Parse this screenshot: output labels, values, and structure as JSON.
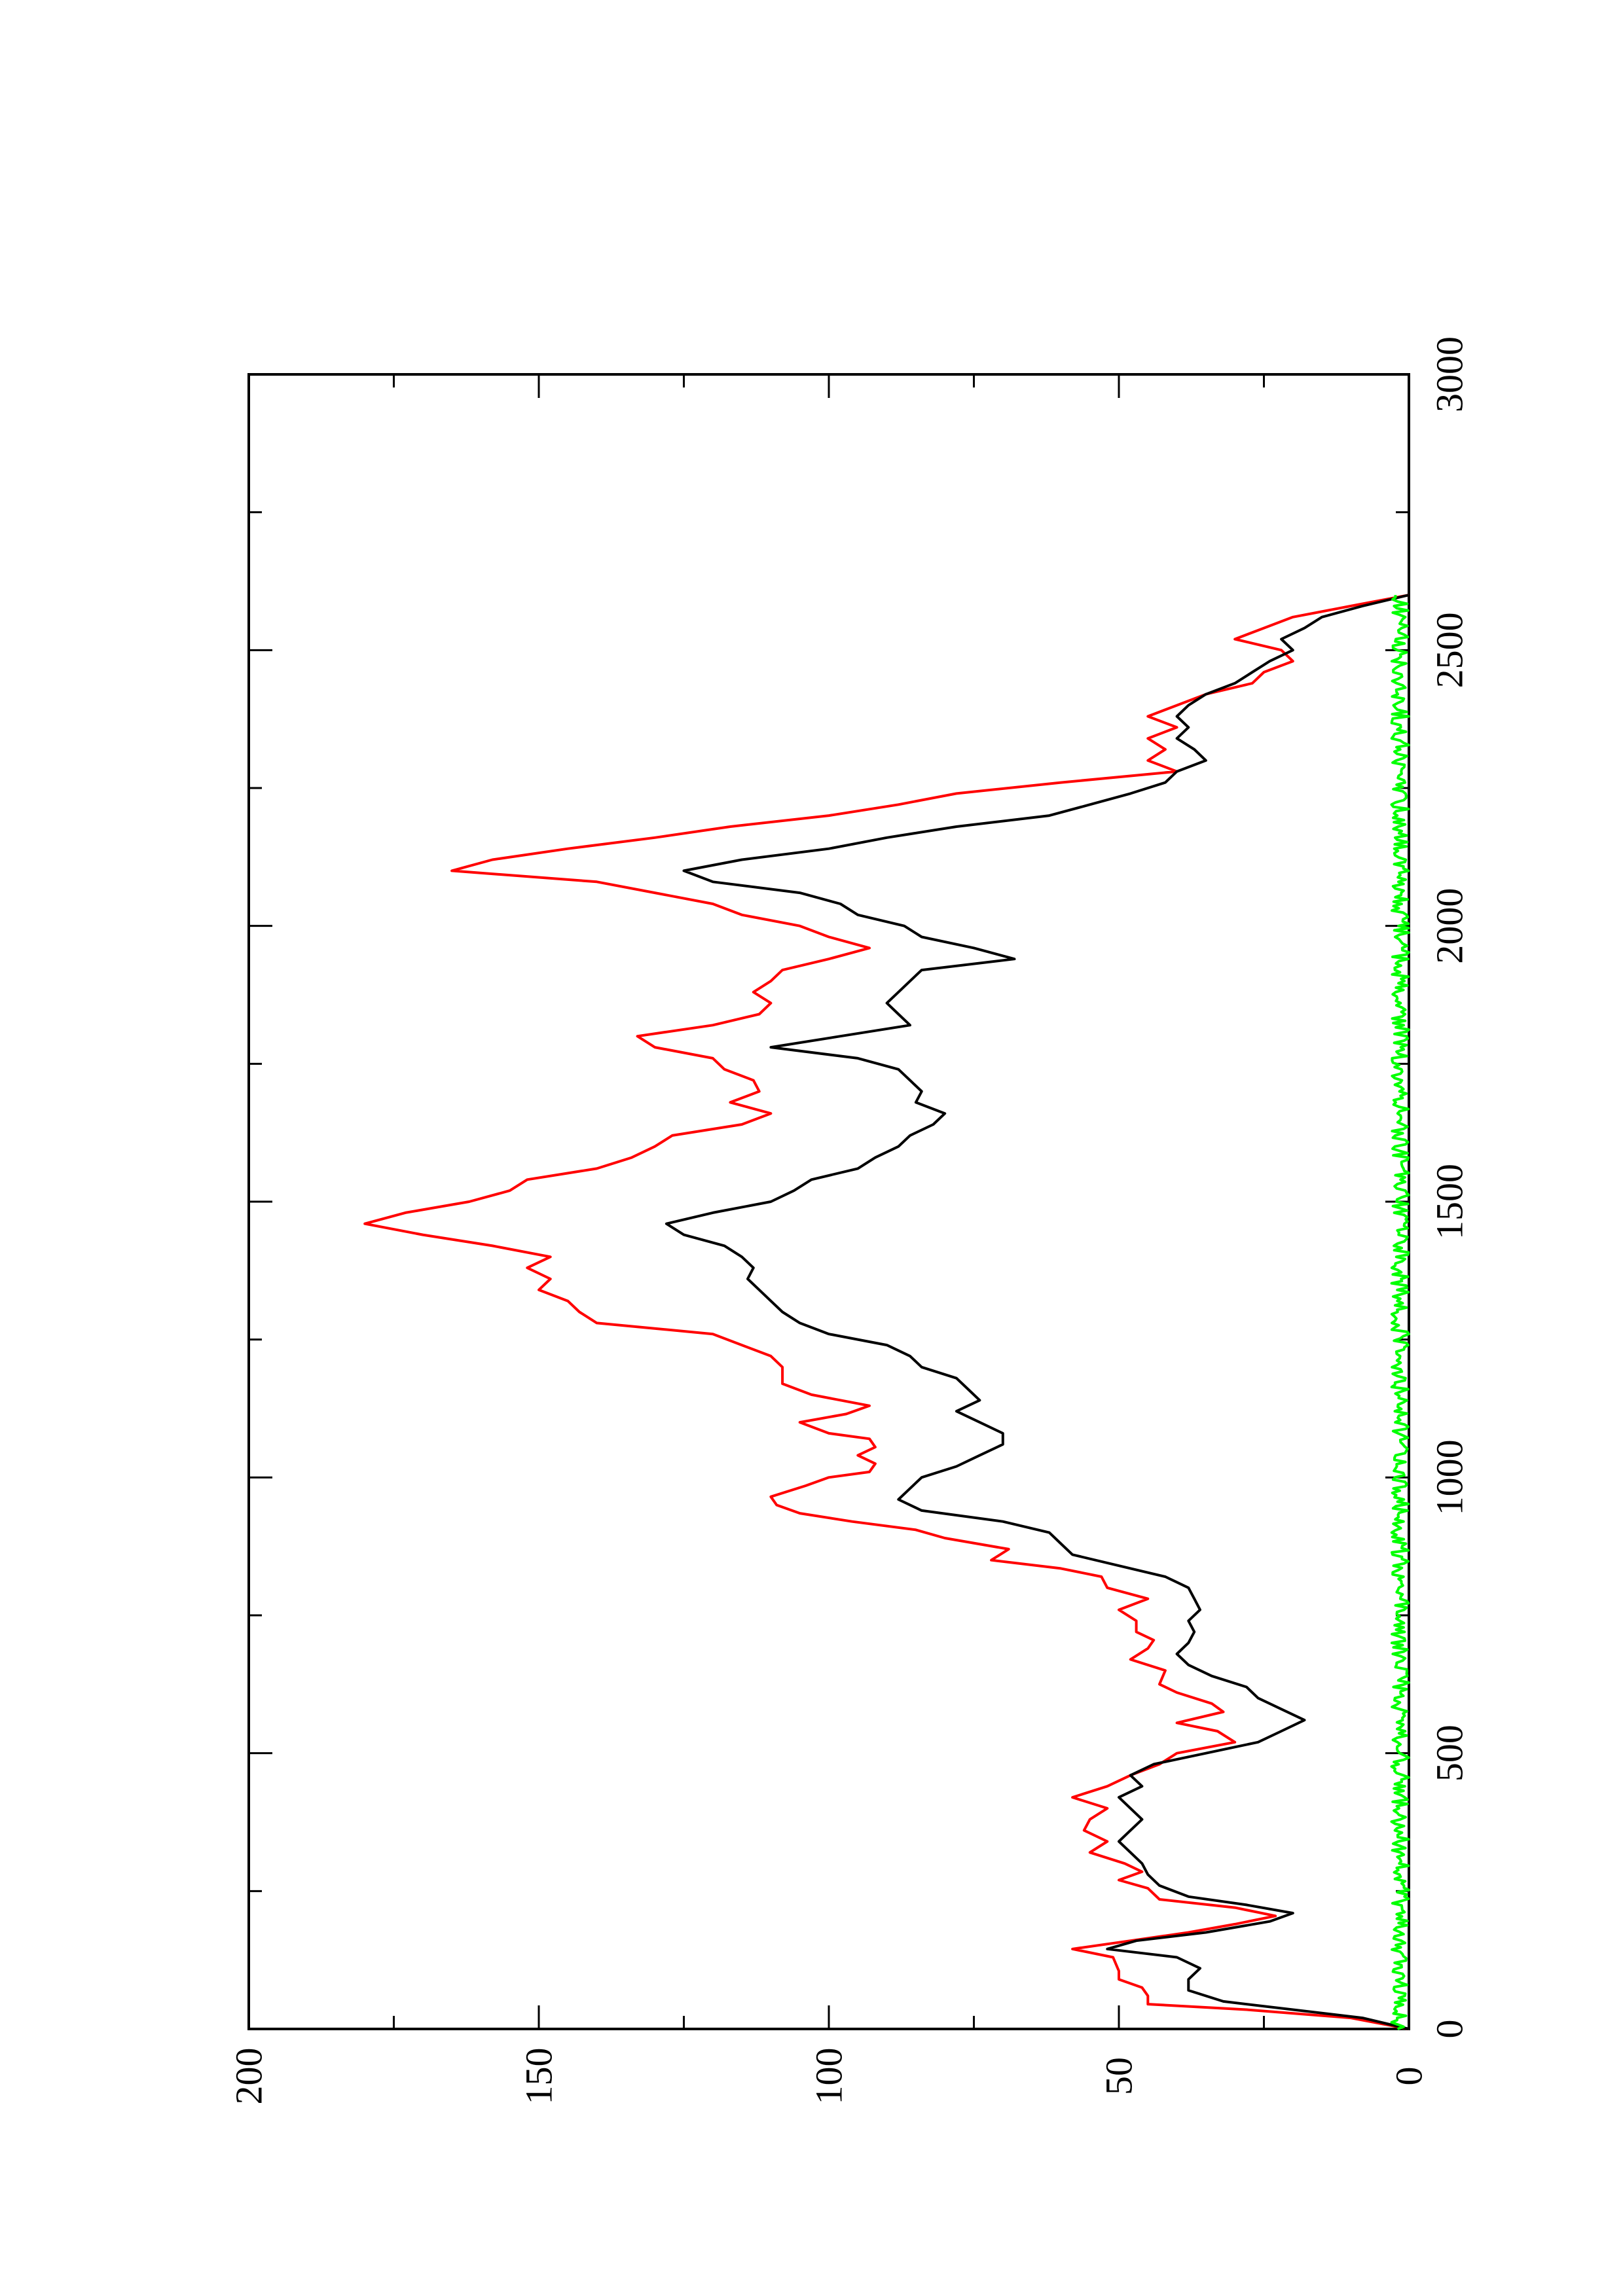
{
  "chart_data": {
    "type": "line",
    "orientation": "rotated-90-ccw",
    "title": "",
    "xlabel": "",
    "ylabel": "",
    "xlim": [
      0,
      3000
    ],
    "ylim": [
      0,
      200
    ],
    "x_ticks_major": [
      0,
      500,
      1000,
      1500,
      2000,
      2500,
      3000
    ],
    "x_tick_labels": [
      "0",
      "500",
      "1000",
      "1500",
      "2000",
      "2500",
      "3000"
    ],
    "y_ticks_major": [
      0,
      50,
      100,
      150,
      200
    ],
    "y_tick_labels": [
      "0",
      "50",
      "100",
      "150",
      "200"
    ],
    "grid": false,
    "legend": "none",
    "series": [
      {
        "color": "#ff0000",
        "points": [
          [
            0,
            0
          ],
          [
            20,
            10
          ],
          [
            35,
            28
          ],
          [
            45,
            45
          ],
          [
            60,
            45
          ],
          [
            75,
            46
          ],
          [
            90,
            50
          ],
          [
            105,
            50
          ],
          [
            130,
            51
          ],
          [
            145,
            58
          ],
          [
            160,
            48
          ],
          [
            175,
            38
          ],
          [
            190,
            30
          ],
          [
            205,
            23
          ],
          [
            220,
            30
          ],
          [
            235,
            43
          ],
          [
            255,
            45
          ],
          [
            270,
            50
          ],
          [
            285,
            46
          ],
          [
            300,
            49
          ],
          [
            320,
            55
          ],
          [
            340,
            52
          ],
          [
            360,
            56
          ],
          [
            380,
            55
          ],
          [
            400,
            52
          ],
          [
            420,
            58
          ],
          [
            440,
            52
          ],
          [
            460,
            48
          ],
          [
            480,
            43
          ],
          [
            500,
            40
          ],
          [
            520,
            30
          ],
          [
            540,
            33
          ],
          [
            555,
            40
          ],
          [
            575,
            32
          ],
          [
            590,
            34
          ],
          [
            610,
            40
          ],
          [
            625,
            43
          ],
          [
            650,
            42
          ],
          [
            670,
            48
          ],
          [
            690,
            45
          ],
          [
            705,
            44
          ],
          [
            720,
            47
          ],
          [
            740,
            47
          ],
          [
            760,
            50
          ],
          [
            780,
            45
          ],
          [
            800,
            52
          ],
          [
            820,
            53
          ],
          [
            835,
            60
          ],
          [
            850,
            72
          ],
          [
            870,
            69
          ],
          [
            890,
            80
          ],
          [
            905,
            85
          ],
          [
            920,
            96
          ],
          [
            935,
            105
          ],
          [
            950,
            109
          ],
          [
            965,
            110
          ],
          [
            985,
            104
          ],
          [
            1000,
            100
          ],
          [
            1010,
            93
          ],
          [
            1025,
            92
          ],
          [
            1040,
            95
          ],
          [
            1055,
            92
          ],
          [
            1070,
            93
          ],
          [
            1080,
            100
          ],
          [
            1100,
            105
          ],
          [
            1115,
            97
          ],
          [
            1130,
            93
          ],
          [
            1150,
            103
          ],
          [
            1170,
            108
          ],
          [
            1200,
            108
          ],
          [
            1220,
            110
          ],
          [
            1240,
            115
          ],
          [
            1260,
            120
          ],
          [
            1280,
            140
          ],
          [
            1300,
            143
          ],
          [
            1320,
            145
          ],
          [
            1340,
            150
          ],
          [
            1360,
            148
          ],
          [
            1380,
            152
          ],
          [
            1400,
            148
          ],
          [
            1420,
            158
          ],
          [
            1440,
            170
          ],
          [
            1460,
            180
          ],
          [
            1480,
            173
          ],
          [
            1500,
            162
          ],
          [
            1520,
            155
          ],
          [
            1540,
            152
          ],
          [
            1560,
            140
          ],
          [
            1580,
            134
          ],
          [
            1600,
            130
          ],
          [
            1620,
            127
          ],
          [
            1640,
            115
          ],
          [
            1660,
            110
          ],
          [
            1680,
            117
          ],
          [
            1700,
            112
          ],
          [
            1720,
            113
          ],
          [
            1740,
            118
          ],
          [
            1760,
            120
          ],
          [
            1780,
            130
          ],
          [
            1800,
            133
          ],
          [
            1820,
            120
          ],
          [
            1840,
            112
          ],
          [
            1860,
            110
          ],
          [
            1880,
            113
          ],
          [
            1900,
            110
          ],
          [
            1920,
            108
          ],
          [
            1940,
            100
          ],
          [
            1960,
            93
          ],
          [
            1980,
            100
          ],
          [
            2000,
            105
          ],
          [
            2020,
            115
          ],
          [
            2040,
            120
          ],
          [
            2060,
            130
          ],
          [
            2080,
            140
          ],
          [
            2100,
            165
          ],
          [
            2120,
            158
          ],
          [
            2140,
            145
          ],
          [
            2160,
            130
          ],
          [
            2180,
            117
          ],
          [
            2200,
            100
          ],
          [
            2220,
            88
          ],
          [
            2240,
            78
          ],
          [
            2260,
            60
          ],
          [
            2280,
            40
          ],
          [
            2300,
            45
          ],
          [
            2320,
            42
          ],
          [
            2340,
            45
          ],
          [
            2360,
            40
          ],
          [
            2380,
            45
          ],
          [
            2400,
            40
          ],
          [
            2420,
            35
          ],
          [
            2440,
            27
          ],
          [
            2460,
            25
          ],
          [
            2480,
            20
          ],
          [
            2500,
            22
          ],
          [
            2520,
            30
          ],
          [
            2540,
            25
          ],
          [
            2560,
            20
          ],
          [
            2580,
            10
          ],
          [
            2600,
            0
          ]
        ]
      },
      {
        "color": "#000000",
        "points": [
          [
            0,
            0
          ],
          [
            20,
            8
          ],
          [
            35,
            20
          ],
          [
            50,
            32
          ],
          [
            70,
            38
          ],
          [
            90,
            38
          ],
          [
            110,
            36
          ],
          [
            130,
            40
          ],
          [
            145,
            52
          ],
          [
            160,
            47
          ],
          [
            175,
            35
          ],
          [
            195,
            24
          ],
          [
            210,
            20
          ],
          [
            225,
            28
          ],
          [
            240,
            38
          ],
          [
            260,
            43
          ],
          [
            280,
            45
          ],
          [
            300,
            46
          ],
          [
            320,
            48
          ],
          [
            340,
            50
          ],
          [
            360,
            48
          ],
          [
            380,
            46
          ],
          [
            400,
            48
          ],
          [
            420,
            50
          ],
          [
            440,
            46
          ],
          [
            460,
            48
          ],
          [
            480,
            44
          ],
          [
            500,
            35
          ],
          [
            520,
            26
          ],
          [
            540,
            22
          ],
          [
            560,
            18
          ],
          [
            580,
            22
          ],
          [
            600,
            26
          ],
          [
            620,
            28
          ],
          [
            640,
            34
          ],
          [
            660,
            38
          ],
          [
            680,
            40
          ],
          [
            700,
            38
          ],
          [
            720,
            37
          ],
          [
            740,
            38
          ],
          [
            760,
            36
          ],
          [
            780,
            37
          ],
          [
            800,
            38
          ],
          [
            820,
            42
          ],
          [
            840,
            50
          ],
          [
            860,
            58
          ],
          [
            880,
            60
          ],
          [
            900,
            62
          ],
          [
            920,
            70
          ],
          [
            940,
            84
          ],
          [
            960,
            88
          ],
          [
            980,
            86
          ],
          [
            1000,
            84
          ],
          [
            1020,
            78
          ],
          [
            1040,
            74
          ],
          [
            1060,
            70
          ],
          [
            1080,
            70
          ],
          [
            1100,
            74
          ],
          [
            1120,
            78
          ],
          [
            1140,
            74
          ],
          [
            1160,
            76
          ],
          [
            1180,
            78
          ],
          [
            1200,
            84
          ],
          [
            1220,
            86
          ],
          [
            1240,
            90
          ],
          [
            1260,
            100
          ],
          [
            1280,
            105
          ],
          [
            1300,
            108
          ],
          [
            1320,
            110
          ],
          [
            1340,
            112
          ],
          [
            1360,
            114
          ],
          [
            1380,
            113
          ],
          [
            1400,
            115
          ],
          [
            1420,
            118
          ],
          [
            1440,
            125
          ],
          [
            1460,
            128
          ],
          [
            1480,
            120
          ],
          [
            1500,
            110
          ],
          [
            1520,
            106
          ],
          [
            1540,
            103
          ],
          [
            1560,
            95
          ],
          [
            1580,
            92
          ],
          [
            1600,
            88
          ],
          [
            1620,
            86
          ],
          [
            1640,
            82
          ],
          [
            1660,
            80
          ],
          [
            1680,
            85
          ],
          [
            1700,
            84
          ],
          [
            1720,
            86
          ],
          [
            1740,
            88
          ],
          [
            1760,
            95
          ],
          [
            1780,
            110
          ],
          [
            1800,
            98
          ],
          [
            1820,
            86
          ],
          [
            1840,
            88
          ],
          [
            1860,
            90
          ],
          [
            1880,
            88
          ],
          [
            1900,
            86
          ],
          [
            1920,
            84
          ],
          [
            1940,
            68
          ],
          [
            1960,
            75
          ],
          [
            1980,
            84
          ],
          [
            2000,
            87
          ],
          [
            2020,
            95
          ],
          [
            2040,
            98
          ],
          [
            2060,
            105
          ],
          [
            2080,
            120
          ],
          [
            2100,
            125
          ],
          [
            2120,
            115
          ],
          [
            2140,
            100
          ],
          [
            2160,
            90
          ],
          [
            2180,
            78
          ],
          [
            2200,
            62
          ],
          [
            2220,
            55
          ],
          [
            2240,
            48
          ],
          [
            2260,
            42
          ],
          [
            2280,
            40
          ],
          [
            2300,
            35
          ],
          [
            2320,
            37
          ],
          [
            2340,
            40
          ],
          [
            2360,
            38
          ],
          [
            2380,
            40
          ],
          [
            2400,
            38
          ],
          [
            2420,
            35
          ],
          [
            2440,
            30
          ],
          [
            2460,
            27
          ],
          [
            2480,
            24
          ],
          [
            2500,
            20
          ],
          [
            2520,
            22
          ],
          [
            2540,
            18
          ],
          [
            2560,
            15
          ],
          [
            2580,
            8
          ],
          [
            2600,
            0
          ]
        ]
      },
      {
        "color": "#00ff00",
        "style": "noisy-near-zero",
        "range": [
          0,
          2600
        ],
        "approx_value": [
          0,
          3
        ]
      }
    ]
  }
}
